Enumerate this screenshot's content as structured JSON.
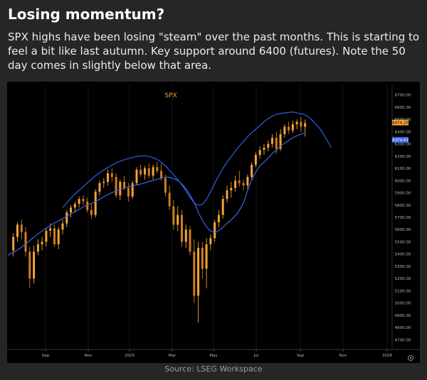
{
  "header": {
    "title": "Losing momentum?",
    "description": "SPX highs have been losing \"steam\" over the past months. This is starting to feel a bit like last autumn. Key support around 6400 (futures). Note the 50 day comes in slightly below that area."
  },
  "footer": {
    "source": "Source: LSEG Workspace"
  },
  "chart_data": {
    "type": "candlestick",
    "title": "SPX",
    "x_ticks": [
      "Sep",
      "Nov",
      "2025",
      "Mar",
      "May",
      "Jul",
      "Sep",
      "Nov",
      "2026"
    ],
    "y_ticks": [
      4700,
      4800,
      4900,
      5000,
      5100,
      5200,
      5300,
      5400,
      5500,
      5600,
      5700,
      5800,
      5900,
      6000,
      6100,
      6200,
      6300,
      6400,
      6500,
      6600,
      6700
    ],
    "ylim": [
      4650,
      6750
    ],
    "last_price": {
      "label": "6474.25",
      "value": 6474.25
    },
    "ma_value": {
      "label": "6379.63",
      "value": 6379.63
    },
    "candles": [
      {
        "t": 2.0,
        "o": 5430,
        "h": 5570,
        "l": 5380,
        "c": 5540
      },
      {
        "t": 3.5,
        "o": 5540,
        "h": 5660,
        "l": 5500,
        "c": 5640
      },
      {
        "t": 5.0,
        "o": 5640,
        "h": 5680,
        "l": 5520,
        "c": 5580
      },
      {
        "t": 6.5,
        "o": 5580,
        "h": 5620,
        "l": 5380,
        "c": 5420
      },
      {
        "t": 8.0,
        "o": 5420,
        "h": 5460,
        "l": 5120,
        "c": 5200
      },
      {
        "t": 9.5,
        "o": 5200,
        "h": 5470,
        "l": 5160,
        "c": 5420
      },
      {
        "t": 11.0,
        "o": 5420,
        "h": 5520,
        "l": 5390,
        "c": 5480
      },
      {
        "t": 12.5,
        "o": 5480,
        "h": 5540,
        "l": 5430,
        "c": 5500
      },
      {
        "t": 14.0,
        "o": 5500,
        "h": 5610,
        "l": 5460,
        "c": 5590
      },
      {
        "t": 15.5,
        "o": 5590,
        "h": 5650,
        "l": 5540,
        "c": 5610
      },
      {
        "t": 17.0,
        "o": 5610,
        "h": 5640,
        "l": 5460,
        "c": 5480
      },
      {
        "t": 18.5,
        "o": 5480,
        "h": 5620,
        "l": 5440,
        "c": 5600
      },
      {
        "t": 20.0,
        "o": 5600,
        "h": 5680,
        "l": 5560,
        "c": 5650
      },
      {
        "t": 21.5,
        "o": 5650,
        "h": 5760,
        "l": 5620,
        "c": 5740
      },
      {
        "t": 23.0,
        "o": 5740,
        "h": 5800,
        "l": 5700,
        "c": 5780
      },
      {
        "t": 24.5,
        "o": 5780,
        "h": 5830,
        "l": 5740,
        "c": 5810
      },
      {
        "t": 26.0,
        "o": 5810,
        "h": 5870,
        "l": 5780,
        "c": 5850
      },
      {
        "t": 27.5,
        "o": 5850,
        "h": 5880,
        "l": 5800,
        "c": 5830
      },
      {
        "t": 29.0,
        "o": 5830,
        "h": 5860,
        "l": 5740,
        "c": 5760
      },
      {
        "t": 30.5,
        "o": 5760,
        "h": 5810,
        "l": 5690,
        "c": 5720
      },
      {
        "t": 32.0,
        "o": 5720,
        "h": 5930,
        "l": 5700,
        "c": 5910
      },
      {
        "t": 33.5,
        "o": 5910,
        "h": 6000,
        "l": 5880,
        "c": 5980
      },
      {
        "t": 35.0,
        "o": 5980,
        "h": 6020,
        "l": 5940,
        "c": 5990
      },
      {
        "t": 36.5,
        "o": 5990,
        "h": 6090,
        "l": 5960,
        "c": 6060
      },
      {
        "t": 38.0,
        "o": 6060,
        "h": 6100,
        "l": 5990,
        "c": 6030
      },
      {
        "t": 39.5,
        "o": 6030,
        "h": 6060,
        "l": 5860,
        "c": 5880
      },
      {
        "t": 41.0,
        "o": 5880,
        "h": 6010,
        "l": 5840,
        "c": 5990
      },
      {
        "t": 42.5,
        "o": 5990,
        "h": 6040,
        "l": 5920,
        "c": 5940
      },
      {
        "t": 44.0,
        "o": 5940,
        "h": 5980,
        "l": 5830,
        "c": 5870
      },
      {
        "t": 45.5,
        "o": 5870,
        "h": 6000,
        "l": 5850,
        "c": 5980
      },
      {
        "t": 47.0,
        "o": 5980,
        "h": 6110,
        "l": 5960,
        "c": 6090
      },
      {
        "t": 48.5,
        "o": 6090,
        "h": 6130,
        "l": 6030,
        "c": 6050
      },
      {
        "t": 50.0,
        "o": 6050,
        "h": 6120,
        "l": 6010,
        "c": 6100
      },
      {
        "t": 51.5,
        "o": 6100,
        "h": 6140,
        "l": 6020,
        "c": 6040
      },
      {
        "t": 53.0,
        "o": 6040,
        "h": 6130,
        "l": 6010,
        "c": 6110
      },
      {
        "t": 54.5,
        "o": 6110,
        "h": 6150,
        "l": 6060,
        "c": 6080
      },
      {
        "t": 56.0,
        "o": 6080,
        "h": 6140,
        "l": 6000,
        "c": 6020
      },
      {
        "t": 57.5,
        "o": 6020,
        "h": 6050,
        "l": 5870,
        "c": 5900
      },
      {
        "t": 59.0,
        "o": 5900,
        "h": 5960,
        "l": 5760,
        "c": 5790
      },
      {
        "t": 60.5,
        "o": 5790,
        "h": 5840,
        "l": 5600,
        "c": 5640
      },
      {
        "t": 62.0,
        "o": 5640,
        "h": 5790,
        "l": 5590,
        "c": 5720
      },
      {
        "t": 63.5,
        "o": 5720,
        "h": 5760,
        "l": 5460,
        "c": 5500
      },
      {
        "t": 65.0,
        "o": 5500,
        "h": 5640,
        "l": 5450,
        "c": 5600
      },
      {
        "t": 66.5,
        "o": 5600,
        "h": 5630,
        "l": 5390,
        "c": 5420
      },
      {
        "t": 68.0,
        "o": 5420,
        "h": 5520,
        "l": 5000,
        "c": 5060
      },
      {
        "t": 69.5,
        "o": 5060,
        "h": 5500,
        "l": 4840,
        "c": 5450
      },
      {
        "t": 71.0,
        "o": 5450,
        "h": 5500,
        "l": 5200,
        "c": 5280
      },
      {
        "t": 72.5,
        "o": 5280,
        "h": 5530,
        "l": 5120,
        "c": 5480
      },
      {
        "t": 74.0,
        "o": 5480,
        "h": 5560,
        "l": 5430,
        "c": 5530
      },
      {
        "t": 75.5,
        "o": 5530,
        "h": 5680,
        "l": 5500,
        "c": 5660
      },
      {
        "t": 77.0,
        "o": 5660,
        "h": 5760,
        "l": 5620,
        "c": 5720
      },
      {
        "t": 78.5,
        "o": 5720,
        "h": 5880,
        "l": 5690,
        "c": 5850
      },
      {
        "t": 80.0,
        "o": 5850,
        "h": 5960,
        "l": 5820,
        "c": 5920
      },
      {
        "t": 81.5,
        "o": 5920,
        "h": 5990,
        "l": 5860,
        "c": 5940
      },
      {
        "t": 83.0,
        "o": 5940,
        "h": 6040,
        "l": 5910,
        "c": 6000
      },
      {
        "t": 84.5,
        "o": 6000,
        "h": 6080,
        "l": 5950,
        "c": 5980
      },
      {
        "t": 86.0,
        "o": 5980,
        "h": 6010,
        "l": 5920,
        "c": 5960
      },
      {
        "t": 87.5,
        "o": 5960,
        "h": 6050,
        "l": 5930,
        "c": 6030
      },
      {
        "t": 89.0,
        "o": 6030,
        "h": 6150,
        "l": 6000,
        "c": 6130
      },
      {
        "t": 90.5,
        "o": 6130,
        "h": 6230,
        "l": 6110,
        "c": 6210
      },
      {
        "t": 92.0,
        "o": 6210,
        "h": 6280,
        "l": 6180,
        "c": 6250
      },
      {
        "t": 93.5,
        "o": 6250,
        "h": 6300,
        "l": 6210,
        "c": 6270
      },
      {
        "t": 95.0,
        "o": 6270,
        "h": 6330,
        "l": 6240,
        "c": 6300
      },
      {
        "t": 96.5,
        "o": 6300,
        "h": 6380,
        "l": 6270,
        "c": 6350
      },
      {
        "t": 98.0,
        "o": 6350,
        "h": 6400,
        "l": 6220,
        "c": 6260
      },
      {
        "t": 99.5,
        "o": 6260,
        "h": 6420,
        "l": 6240,
        "c": 6380
      },
      {
        "t": 101.0,
        "o": 6380,
        "h": 6460,
        "l": 6350,
        "c": 6440
      },
      {
        "t": 102.5,
        "o": 6440,
        "h": 6480,
        "l": 6380,
        "c": 6410
      },
      {
        "t": 104.0,
        "o": 6410,
        "h": 6490,
        "l": 6390,
        "c": 6460
      },
      {
        "t": 105.5,
        "o": 6460,
        "h": 6500,
        "l": 6420,
        "c": 6480
      },
      {
        "t": 107.0,
        "o": 6480,
        "h": 6520,
        "l": 6400,
        "c": 6440
      },
      {
        "t": 108.5,
        "o": 6440,
        "h": 6500,
        "l": 6360,
        "c": 6470
      }
    ],
    "ma_line": [
      [
        0,
        5390
      ],
      [
        4,
        5440
      ],
      [
        8,
        5510
      ],
      [
        12,
        5580
      ],
      [
        16,
        5640
      ],
      [
        20,
        5690
      ],
      [
        24,
        5740
      ],
      [
        28,
        5790
      ],
      [
        32,
        5830
      ],
      [
        36,
        5880
      ],
      [
        40,
        5920
      ],
      [
        44,
        5950
      ],
      [
        48,
        5970
      ],
      [
        52,
        5995
      ],
      [
        56,
        6020
      ],
      [
        58,
        6030
      ],
      [
        60,
        6020
      ],
      [
        62,
        6000
      ],
      [
        64,
        5960
      ],
      [
        66,
        5900
      ],
      [
        68,
        5820
      ],
      [
        70,
        5720
      ],
      [
        72,
        5640
      ],
      [
        74,
        5590
      ],
      [
        76,
        5580
      ],
      [
        78,
        5610
      ],
      [
        80,
        5650
      ],
      [
        82,
        5690
      ],
      [
        84,
        5740
      ],
      [
        86,
        5820
      ],
      [
        88,
        5950
      ],
      [
        90,
        6050
      ],
      [
        92,
        6120
      ],
      [
        94,
        6160
      ],
      [
        96,
        6210
      ],
      [
        98,
        6250
      ],
      [
        100,
        6290
      ],
      [
        102,
        6320
      ],
      [
        104,
        6350
      ],
      [
        106,
        6370
      ],
      [
        108.5,
        6390
      ]
    ],
    "arc_line": [
      [
        20,
        5780
      ],
      [
        24,
        5880
      ],
      [
        28,
        5960
      ],
      [
        32,
        6040
      ],
      [
        36,
        6100
      ],
      [
        40,
        6150
      ],
      [
        44,
        6180
      ],
      [
        48,
        6200
      ],
      [
        52,
        6195
      ],
      [
        56,
        6150
      ],
      [
        60,
        6060
      ],
      [
        64,
        5950
      ],
      [
        66,
        5880
      ],
      [
        68,
        5820
      ],
      [
        70,
        5800
      ],
      [
        72,
        5830
      ],
      [
        74,
        5910
      ],
      [
        76,
        6000
      ],
      [
        78,
        6080
      ],
      [
        80,
        6150
      ],
      [
        82,
        6210
      ],
      [
        84,
        6270
      ],
      [
        86,
        6320
      ],
      [
        88,
        6370
      ],
      [
        90,
        6410
      ],
      [
        92,
        6450
      ],
      [
        94,
        6490
      ],
      [
        96,
        6520
      ],
      [
        98,
        6540
      ],
      [
        100,
        6550
      ],
      [
        102,
        6555
      ],
      [
        104,
        6560
      ],
      [
        106,
        6550
      ],
      [
        108,
        6540
      ],
      [
        110,
        6515
      ],
      [
        112,
        6470
      ],
      [
        114,
        6420
      ],
      [
        116,
        6350
      ],
      [
        118,
        6270
      ]
    ]
  }
}
